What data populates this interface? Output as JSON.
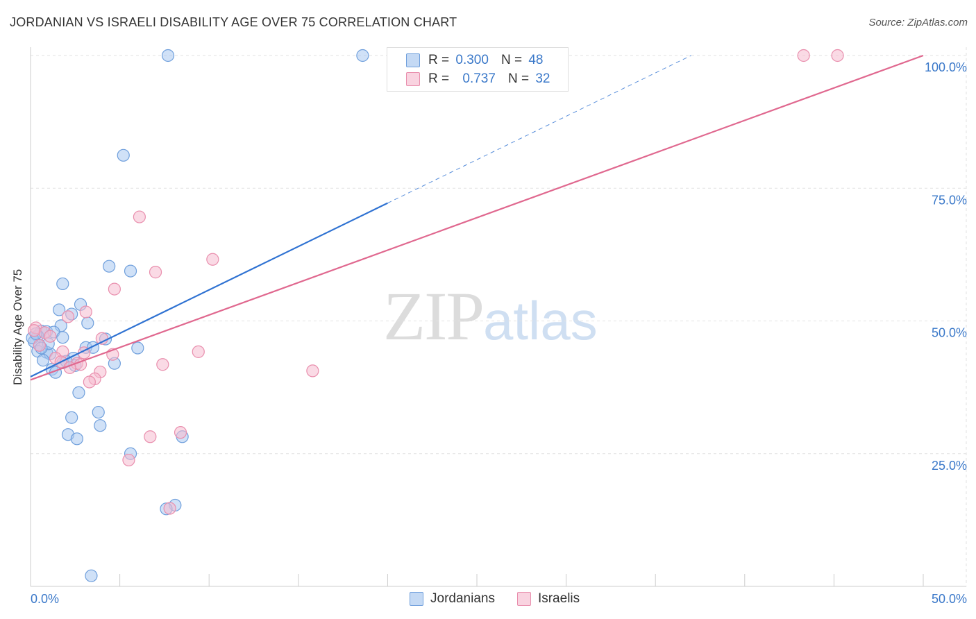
{
  "title": "JORDANIAN VS ISRAELI DISABILITY AGE OVER 75 CORRELATION CHART",
  "source": "Source: ZipAtlas.com",
  "watermark": {
    "zip": "ZIP",
    "atlas": "atlas"
  },
  "colors": {
    "blue_fill": "#a9c8f0",
    "blue_stroke": "#6f9fdc",
    "blue_line": "#2f72d2",
    "pink_fill": "#f6bcd0",
    "pink_stroke": "#e98ead",
    "pink_line": "#e0688f",
    "tick_label": "#3a78c9",
    "grid": "#e2e2e2"
  },
  "legend": {
    "rows": [
      {
        "r_label": "R =",
        "r_value": "0.300",
        "n_label": "N =",
        "n_value": "48"
      },
      {
        "r_label": "R =",
        "r_value": "0.737",
        "n_label": "N =",
        "n_value": "32"
      }
    ]
  },
  "series_legend": [
    "Jordanians",
    "Israelis"
  ],
  "chart_data": {
    "type": "scatter",
    "title": "JORDANIAN VS ISRAELI DISABILITY AGE OVER 75 CORRELATION CHART",
    "xlabel": "",
    "ylabel": "Disability Age Over 75",
    "xlim": [
      0,
      50
    ],
    "ylim": [
      0,
      102
    ],
    "x_tick_labels": [
      {
        "value": 0,
        "label": "0.0%"
      },
      {
        "value": 50,
        "label": "50.0%"
      }
    ],
    "y_tick_labels": [
      {
        "value": 100,
        "label": "100.0%"
      },
      {
        "value": 75,
        "label": "75.0%"
      },
      {
        "value": 50,
        "label": "50.0%"
      },
      {
        "value": 25,
        "label": "25.0%"
      }
    ],
    "grid": true,
    "series": [
      {
        "name": "Jordanians",
        "R": 0.3,
        "N": 48,
        "trend": {
          "x0": 0,
          "y0": 39.5,
          "x1": 20,
          "y1": 72.2,
          "dash_x1": 37,
          "dash_y1": 100
        },
        "points": [
          [
            7.7,
            100
          ],
          [
            18.6,
            100
          ],
          [
            5.2,
            81.2
          ],
          [
            4.4,
            60.3
          ],
          [
            5.6,
            59.4
          ],
          [
            1.8,
            57.0
          ],
          [
            2.8,
            53.1
          ],
          [
            1.6,
            52.1
          ],
          [
            2.3,
            51.3
          ],
          [
            1.7,
            49.1
          ],
          [
            3.2,
            49.6
          ],
          [
            0.6,
            48.1
          ],
          [
            0.9,
            48.0
          ],
          [
            1.3,
            47.9
          ],
          [
            0.4,
            47.2
          ],
          [
            1.8,
            46.9
          ],
          [
            4.2,
            46.6
          ],
          [
            0.2,
            46.1
          ],
          [
            0.5,
            45.4
          ],
          [
            3.1,
            45.0
          ],
          [
            3.5,
            45.0
          ],
          [
            6.0,
            44.9
          ],
          [
            0.4,
            44.3
          ],
          [
            0.9,
            44.1
          ],
          [
            1.1,
            43.8
          ],
          [
            2.4,
            43.0
          ],
          [
            0.7,
            42.6
          ],
          [
            1.8,
            42.1
          ],
          [
            4.7,
            42.0
          ],
          [
            2.5,
            41.6
          ],
          [
            1.2,
            40.9
          ],
          [
            1.4,
            40.3
          ],
          [
            2.7,
            36.5
          ],
          [
            3.8,
            32.8
          ],
          [
            2.3,
            31.8
          ],
          [
            3.9,
            30.3
          ],
          [
            2.1,
            28.6
          ],
          [
            2.6,
            27.8
          ],
          [
            8.5,
            28.2
          ],
          [
            5.6,
            25.0
          ],
          [
            8.1,
            15.3
          ],
          [
            7.6,
            14.6
          ],
          [
            3.4,
            2.0
          ],
          [
            0.1,
            46.8
          ],
          [
            0.3,
            47.6
          ],
          [
            1.0,
            45.7
          ],
          [
            2.0,
            42.4
          ],
          [
            0.6,
            44.9
          ]
        ]
      },
      {
        "name": "Israelis",
        "R": 0.737,
        "N": 32,
        "trend": {
          "x0": 0,
          "y0": 38.9,
          "x1": 50,
          "y1": 100
        },
        "points": [
          [
            43.3,
            100
          ],
          [
            45.2,
            100
          ],
          [
            6.1,
            69.6
          ],
          [
            10.2,
            61.6
          ],
          [
            7.0,
            59.2
          ],
          [
            4.7,
            56.0
          ],
          [
            3.1,
            51.7
          ],
          [
            2.1,
            50.8
          ],
          [
            0.3,
            48.7
          ],
          [
            0.8,
            47.8
          ],
          [
            1.1,
            47.1
          ],
          [
            4.0,
            46.7
          ],
          [
            0.5,
            45.4
          ],
          [
            1.8,
            44.2
          ],
          [
            9.4,
            44.2
          ],
          [
            3.0,
            44.0
          ],
          [
            4.6,
            43.7
          ],
          [
            1.4,
            43.0
          ],
          [
            1.7,
            42.3
          ],
          [
            2.6,
            42.0
          ],
          [
            2.8,
            41.8
          ],
          [
            7.4,
            41.8
          ],
          [
            2.2,
            41.2
          ],
          [
            3.9,
            40.4
          ],
          [
            15.8,
            40.6
          ],
          [
            3.6,
            39.1
          ],
          [
            3.3,
            38.5
          ],
          [
            8.4,
            29.0
          ],
          [
            6.7,
            28.2
          ],
          [
            5.5,
            23.8
          ],
          [
            7.8,
            14.7
          ],
          [
            0.2,
            48.2
          ]
        ]
      }
    ]
  }
}
